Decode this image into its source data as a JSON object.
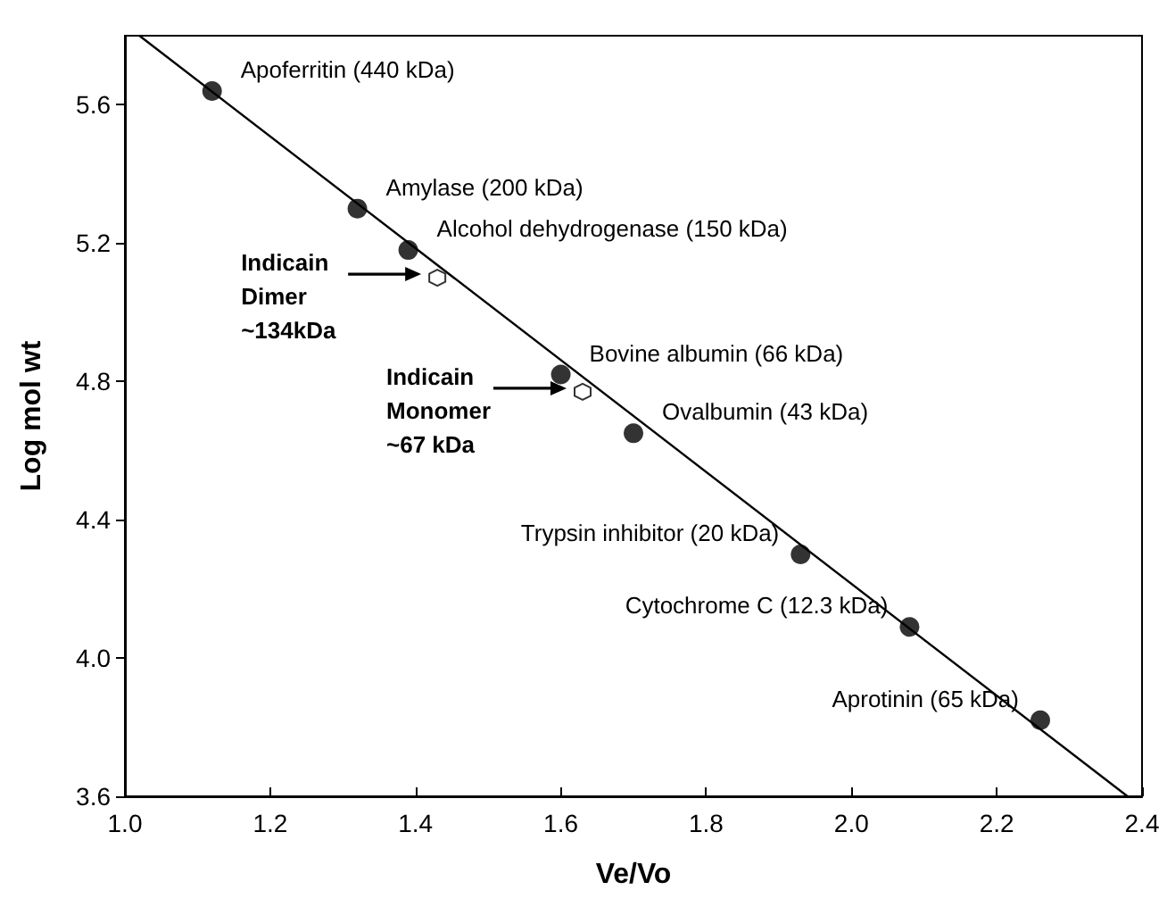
{
  "chart_data": {
    "type": "scatter",
    "xlabel": "Ve/Vo",
    "ylabel": "Log mol wt",
    "xlim": [
      1.0,
      2.4
    ],
    "xticks": [
      {
        "value": 1.0,
        "label": "1.0"
      },
      1.2,
      1.4,
      1.6,
      1.8,
      {
        "value": 2.0,
        "label": "2.0"
      },
      2.2,
      2.4
    ],
    "ylim": [
      3.6,
      5.8
    ],
    "yticks": [
      3.6,
      {
        "value": 4.0,
        "label": "4.0"
      },
      4.4,
      4.8,
      5.2,
      5.6
    ],
    "grid": false,
    "marker": "circle",
    "series": [
      {
        "color": "#000000",
        "x": [
          1.12,
          1.32,
          1.39,
          1.6,
          1.7,
          1.93,
          2.08,
          2.26
        ],
        "values": [
          5.64,
          5.3,
          5.18,
          4.82,
          4.65,
          4.3,
          4.09,
          3.82
        ]
      },
      {
        "color": "#000000",
        "x": [
          1.43,
          1.63
        ],
        "values": [
          5.1,
          4.77
        ]
      },
      {
        "type": "line",
        "color": "#000000",
        "marker": "none",
        "x": [
          1.02,
          2.38
        ],
        "values": [
          5.8,
          3.6
        ]
      }
    ],
    "annotations": [
      {
        "text": "Apoferritin (440 kDa)",
        "x": 1.12,
        "y": 5.64
      },
      {
        "text": "Amylase (200 kDa)",
        "x": 1.32,
        "y": 5.3
      },
      {
        "text": "Alcohol dehydrogenase (150 kDa)",
        "x": 1.39,
        "y": 5.18
      },
      {
        "text": "Bovine albumin (66 kDa)",
        "x": 1.6,
        "y": 4.82
      },
      {
        "text": "Ovalbumin (43 kDa)",
        "x": 1.7,
        "y": 4.65
      },
      {
        "text": "Trypsin inhibitor (20 kDa)",
        "x": 1.93,
        "y": 4.3
      },
      {
        "text": "Cytochrome C (12.3 kDa)",
        "x": 2.08,
        "y": 4.09
      },
      {
        "text": "Aprotinin (65 kDa)",
        "x": 2.26,
        "y": 3.82
      },
      "Indicain\nDimer\n~134kDa",
      "Indicain\nMonomer\n~67 kDa"
    ]
  }
}
